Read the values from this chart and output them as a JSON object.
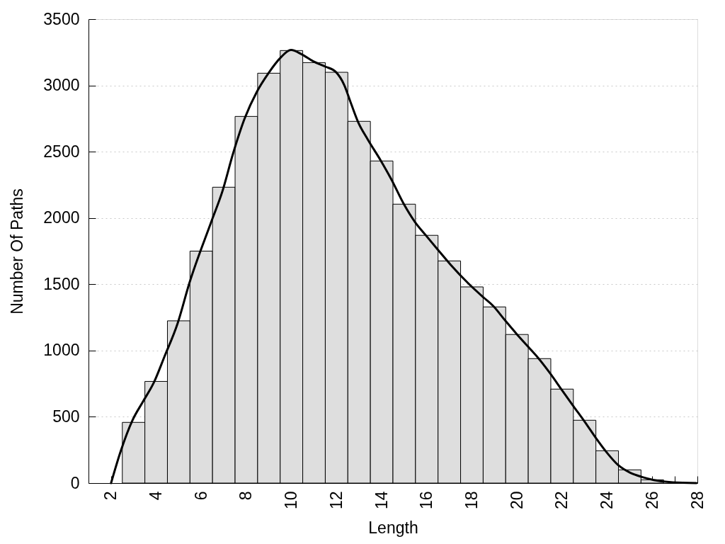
{
  "chart_data": {
    "type": "histogram",
    "xlabel": "Length",
    "ylabel": "Number Of Paths",
    "bins": [
      2.5,
      3.5,
      4.5,
      5.5,
      6.5,
      7.5,
      8.5,
      9.5,
      10.5,
      11.5,
      12.5,
      13.5,
      14.5,
      15.5,
      16.5,
      17.5,
      18.5,
      19.5,
      20.5,
      21.5,
      22.5,
      23.5,
      24.5,
      25.5,
      26.5
    ],
    "values": [
      458,
      767,
      1224,
      1750,
      2232,
      2766,
      3092,
      3263,
      3172,
      3099,
      2729,
      2430,
      2104,
      1869,
      1676,
      1480,
      1329,
      1121,
      939,
      709,
      474,
      244,
      100,
      25
    ],
    "color": "#dedede",
    "series": [
      {
        "type": "line",
        "color": "#000000",
        "x": [
          2.0,
          2.43,
          2.95,
          3.42,
          3.9,
          4.37,
          4.95,
          5.47,
          6.44,
          6.94,
          7.41,
          7.93,
          8.46,
          8.98,
          9.51,
          9.98,
          10.45,
          10.97,
          11.5,
          11.97,
          12.34,
          12.65,
          12.97,
          13.38,
          13.96,
          14.43,
          14.96,
          15.48,
          15.95,
          16.47,
          17.05,
          17.84,
          18.52,
          18.94,
          19.46,
          19.99,
          20.51,
          20.93,
          21.46,
          21.98,
          22.5,
          23.03,
          23.5,
          23.97,
          24.49,
          25.02,
          25.54,
          26.07,
          26.91,
          27.96
        ],
        "values": [
          0,
          242,
          474,
          616,
          759,
          955,
          1204,
          1507,
          1969,
          2202,
          2486,
          2753,
          2950,
          3092,
          3208,
          3267,
          3235,
          3181,
          3142,
          3101,
          3003,
          2860,
          2718,
          2593,
          2433,
          2291,
          2112,
          1969,
          1871,
          1765,
          1649,
          1507,
          1400,
          1337,
          1230,
          1124,
          1026,
          946,
          830,
          705,
          581,
          456,
          340,
          233,
          135,
          78,
          46,
          23,
          5,
          0
        ]
      }
    ],
    "xlim": [
      1,
      28
    ],
    "ylim": [
      0,
      3500
    ],
    "xticks": [
      2,
      4,
      6,
      8,
      10,
      12,
      14,
      16,
      18,
      20,
      22,
      24,
      26,
      {
        "value": 27,
        "label": null
      },
      28
    ],
    "yticks": [
      0,
      500,
      1000,
      1500,
      2000,
      2500,
      3000,
      3500
    ],
    "grid": "y"
  }
}
